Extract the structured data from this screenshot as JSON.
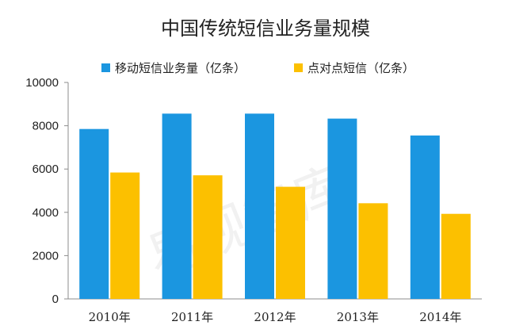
{
  "chart_data": {
    "type": "bar",
    "title": "中国传统短信业务量规模",
    "categories": [
      "2010年",
      "2011年",
      "2012年",
      "2013年",
      "2014年"
    ],
    "series": [
      {
        "name": "移动短信业务量（亿条）",
        "color": "#1b96e0",
        "values": [
          7850,
          8560,
          8560,
          8330,
          7550
        ]
      },
      {
        "name": "点对点短信（亿条）",
        "color": "#fcc000",
        "values": [
          5840,
          5710,
          5180,
          4420,
          3930
        ]
      }
    ],
    "ylim": [
      0,
      10000
    ],
    "yticks": [
      "0",
      "2000",
      "4000",
      "6000",
      "8000",
      "10000"
    ],
    "grid": false,
    "legend_position": "top"
  },
  "watermark": "易观智库"
}
